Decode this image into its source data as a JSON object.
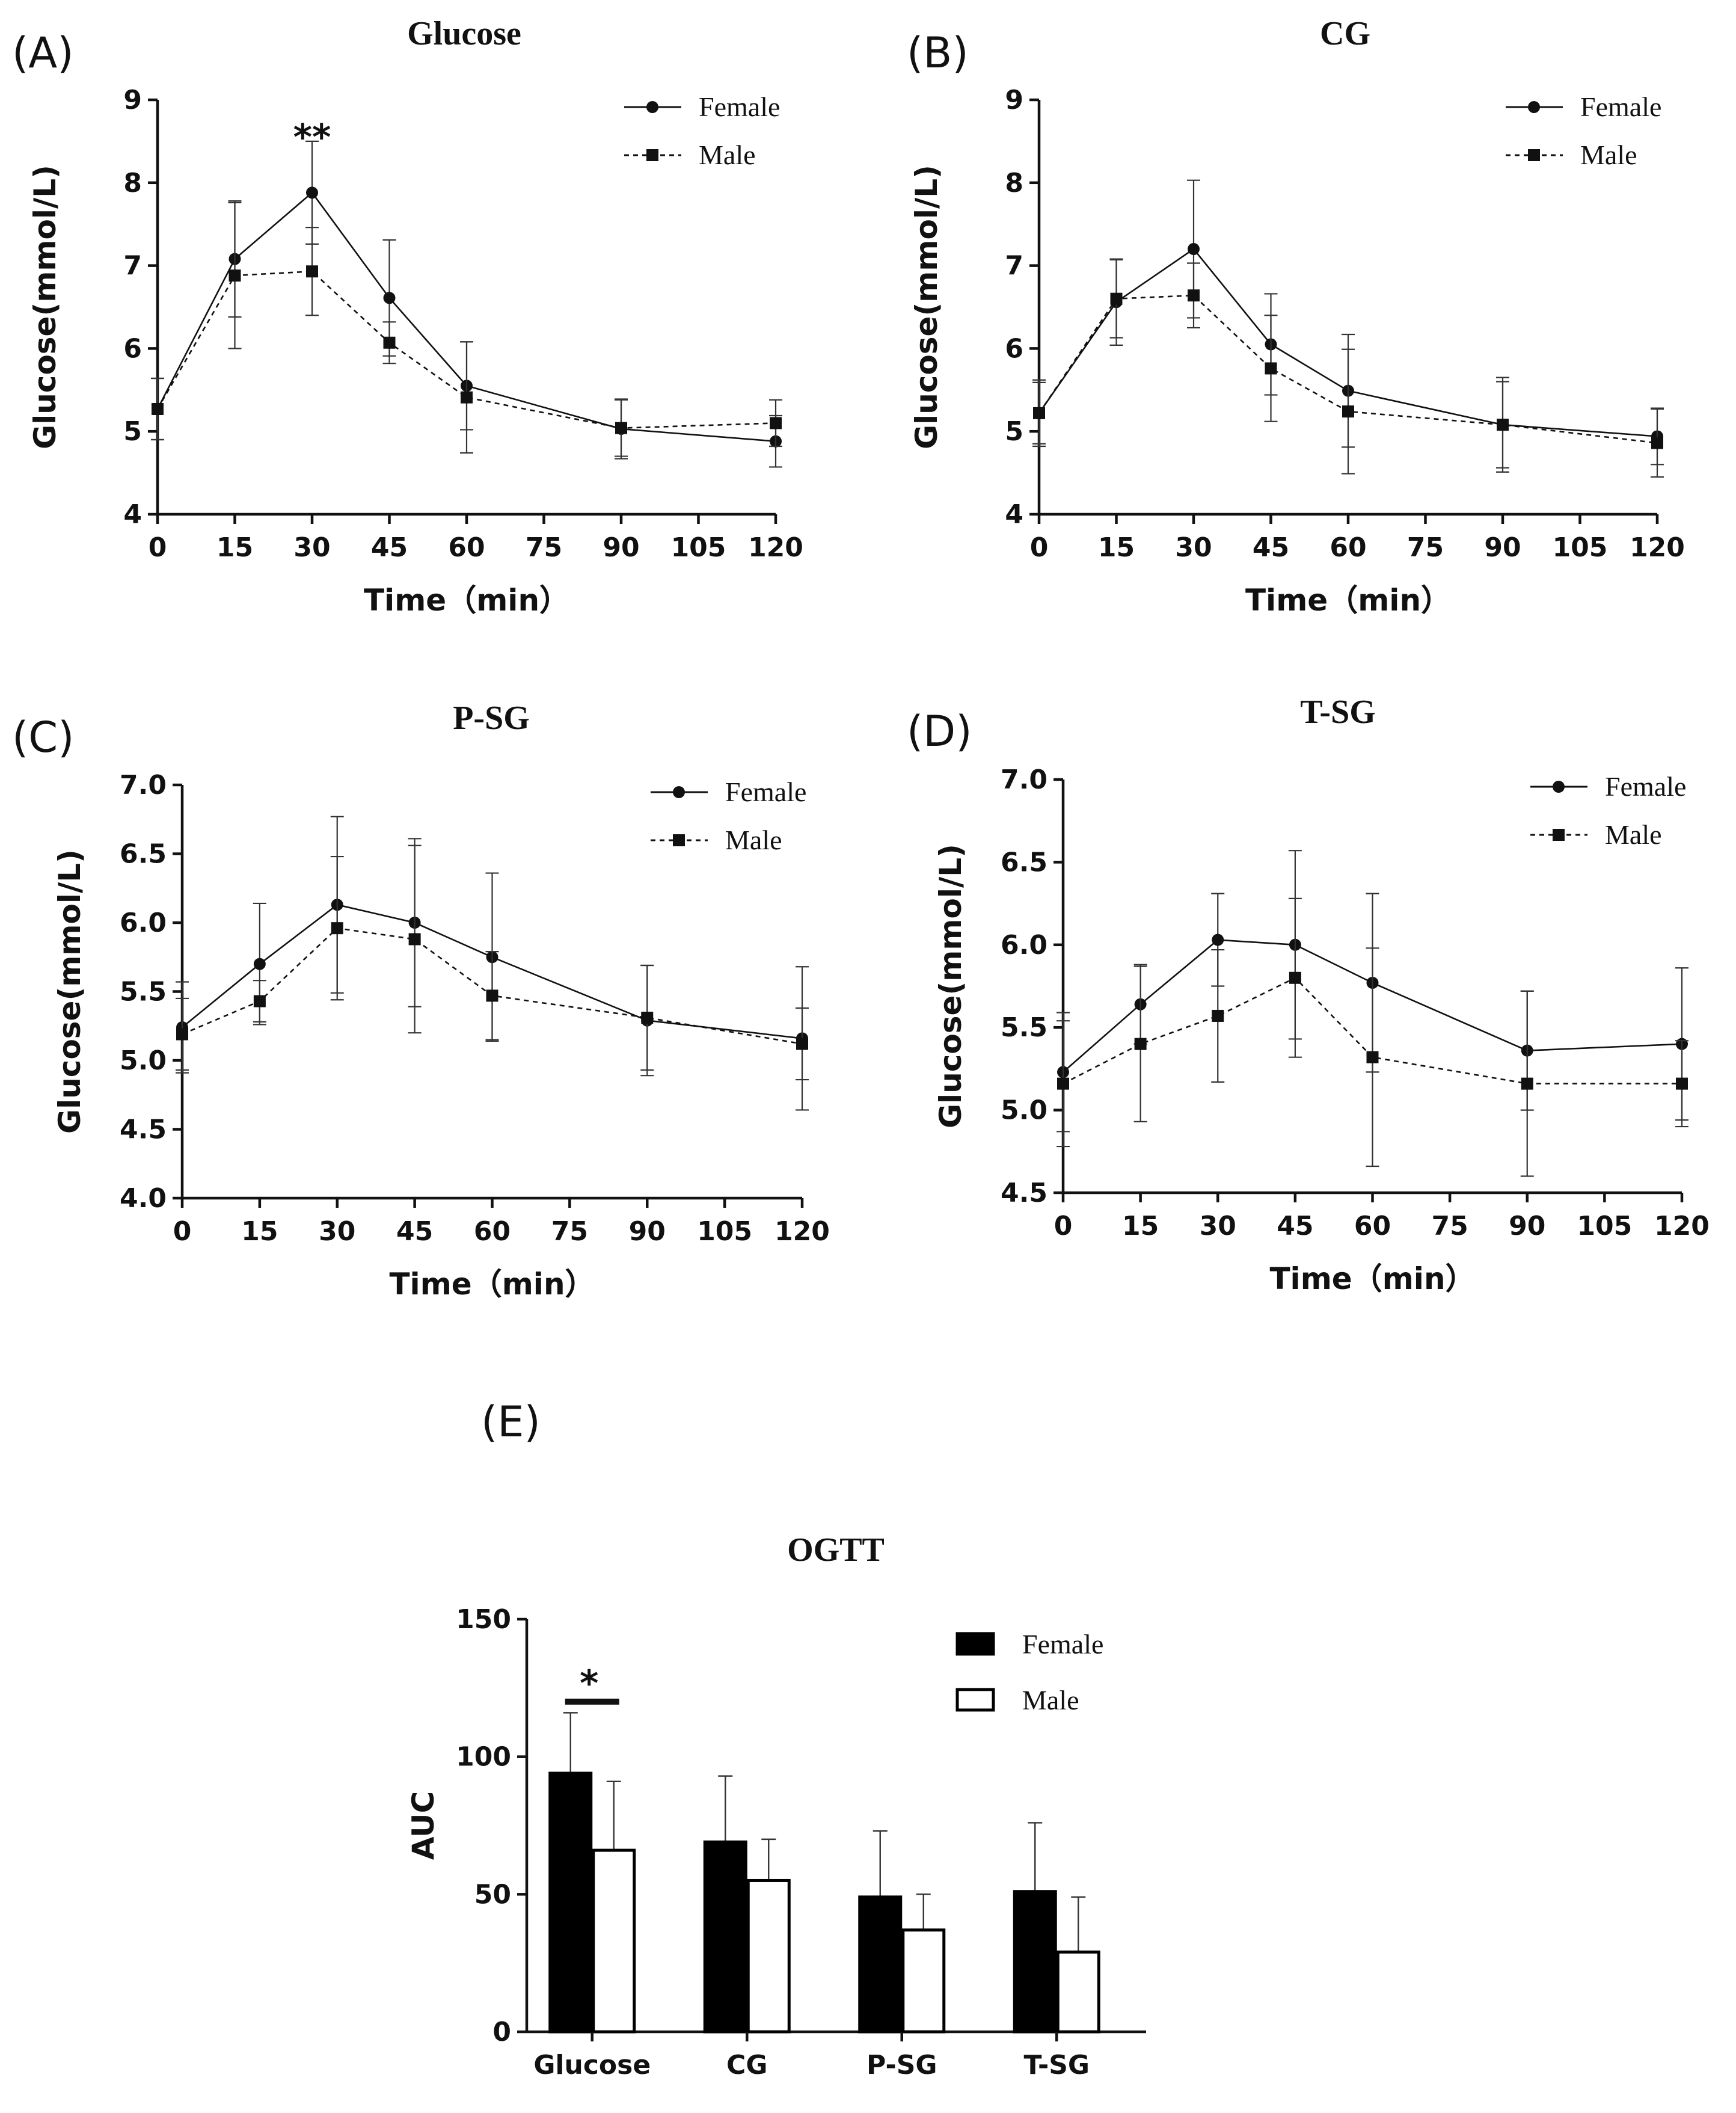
{
  "chart_data": [
    {
      "panel": "(A)",
      "type": "line",
      "title": "Glucose",
      "xlabel": "Time（min）",
      "ylabel": "Glucose(mmol/L)",
      "xlim": [
        0,
        120
      ],
      "ylim": [
        4,
        9
      ],
      "xticks": [
        "0",
        "15",
        "30",
        "45",
        "60",
        "75",
        "90",
        "105",
        "120"
      ],
      "yticks": [
        "4",
        "5",
        "6",
        "7",
        "8",
        "9"
      ],
      "x": [
        0,
        15,
        30,
        45,
        60,
        90,
        120
      ],
      "series": [
        {
          "name": "Female",
          "marker": "circle",
          "line": "solid",
          "values": [
            5.27,
            7.08,
            7.88,
            6.61,
            5.55,
            5.03,
            4.88
          ],
          "err": [
            0.37,
            0.7,
            0.62,
            0.7,
            0.53,
            0.36,
            0.31
          ]
        },
        {
          "name": "Male",
          "marker": "square",
          "line": "dashed",
          "values": [
            5.27,
            6.88,
            6.93,
            6.07,
            5.41,
            5.04,
            5.1
          ],
          "err": [
            0.37,
            0.88,
            0.53,
            0.25,
            0.67,
            0.34,
            0.28
          ]
        }
      ],
      "annotations": [
        {
          "text": "**",
          "x": 30,
          "y": 8.62
        }
      ],
      "legend": "top-right"
    },
    {
      "panel": "(B)",
      "type": "line",
      "title": "CG",
      "xlabel": "Time（min）",
      "ylabel": "Glucose(mmol/L)",
      "xlim": [
        0,
        120
      ],
      "ylim": [
        4,
        9
      ],
      "xticks": [
        "0",
        "15",
        "30",
        "45",
        "60",
        "75",
        "90",
        "105",
        "120"
      ],
      "yticks": [
        "4",
        "5",
        "6",
        "7",
        "8",
        "9"
      ],
      "x": [
        0,
        15,
        30,
        45,
        60,
        90,
        120
      ],
      "series": [
        {
          "name": "Female",
          "marker": "circle",
          "line": "solid",
          "values": [
            5.22,
            6.56,
            7.2,
            6.05,
            5.49,
            5.08,
            4.94
          ],
          "err": [
            0.4,
            0.52,
            0.83,
            0.61,
            0.68,
            0.57,
            0.34
          ]
        },
        {
          "name": "Male",
          "marker": "square",
          "line": "dashed",
          "values": [
            5.22,
            6.6,
            6.64,
            5.76,
            5.24,
            5.08,
            4.86
          ],
          "err": [
            0.37,
            0.47,
            0.39,
            0.64,
            0.75,
            0.52,
            0.41
          ]
        }
      ],
      "legend": "top-right"
    },
    {
      "panel": "(C)",
      "type": "line",
      "title": "P-SG",
      "xlabel": "Time（min）",
      "ylabel": "Glucose(mmol/L)",
      "xlim": [
        0,
        120
      ],
      "ylim": [
        4.0,
        7.0
      ],
      "xticks": [
        "0",
        "15",
        "30",
        "45",
        "60",
        "75",
        "90",
        "105",
        "120"
      ],
      "yticks": [
        "4.0",
        "4.5",
        "5.0",
        "5.5",
        "6.0",
        "6.5",
        "7.0"
      ],
      "x": [
        0,
        15,
        30,
        45,
        60,
        90,
        120
      ],
      "series": [
        {
          "name": "Female",
          "marker": "circle",
          "line": "solid",
          "values": [
            5.24,
            5.7,
            6.13,
            6.0,
            5.75,
            5.29,
            5.16
          ],
          "err": [
            0.33,
            0.44,
            0.64,
            0.61,
            0.61,
            0.4,
            0.52
          ]
        },
        {
          "name": "Male",
          "marker": "square",
          "line": "dashed",
          "values": [
            5.19,
            5.43,
            5.96,
            5.88,
            5.47,
            5.31,
            5.12
          ],
          "err": [
            0.26,
            0.15,
            0.52,
            0.68,
            0.32,
            0.38,
            0.26
          ]
        }
      ],
      "legend": "top-right"
    },
    {
      "panel": "(D)",
      "type": "line",
      "title": "T-SG",
      "xlabel": "Time（min）",
      "ylabel": "Glucose(mmol/L)",
      "xlim": [
        0,
        120
      ],
      "ylim": [
        4.5,
        7.0
      ],
      "xticks": [
        "0",
        "15",
        "30",
        "45",
        "60",
        "75",
        "90",
        "105",
        "120"
      ],
      "yticks": [
        "4.5",
        "5.0",
        "5.5",
        "6.0",
        "6.5",
        "7.0"
      ],
      "x": [
        0,
        15,
        30,
        45,
        60,
        90,
        120
      ],
      "series": [
        {
          "name": "Female",
          "marker": "circle",
          "line": "solid",
          "values": [
            5.23,
            5.64,
            6.03,
            6.0,
            5.77,
            5.36,
            5.4
          ],
          "err": [
            0.36,
            0.24,
            0.28,
            0.57,
            0.54,
            0.36,
            0.46
          ]
        },
        {
          "name": "Male",
          "marker": "square",
          "line": "dashed",
          "values": [
            5.16,
            5.4,
            5.57,
            5.8,
            5.32,
            5.16,
            5.16
          ],
          "err": [
            0.38,
            0.47,
            0.4,
            0.48,
            0.66,
            0.56,
            0.26
          ]
        }
      ],
      "legend": "top-right"
    },
    {
      "panel": "(E)",
      "type": "bar",
      "title": "OGTT",
      "xlabel": "",
      "ylabel": "AUC",
      "ylim": [
        0,
        150
      ],
      "yticks": [
        "0",
        "50",
        "100",
        "150"
      ],
      "categories": [
        "Glucose",
        "CG",
        "P-SG",
        "T-SG"
      ],
      "series": [
        {
          "name": "Female",
          "fill": "#000000",
          "values": [
            94,
            69,
            49,
            51
          ],
          "err": [
            22,
            24,
            24,
            25
          ]
        },
        {
          "name": "Male",
          "fill": "#ffffff",
          "values": [
            66,
            55,
            37,
            29
          ],
          "err": [
            25,
            15,
            13,
            20
          ]
        }
      ],
      "annotations": [
        {
          "text": "*",
          "category": "Glucose",
          "y": 120
        }
      ],
      "legend": "top-right"
    }
  ]
}
